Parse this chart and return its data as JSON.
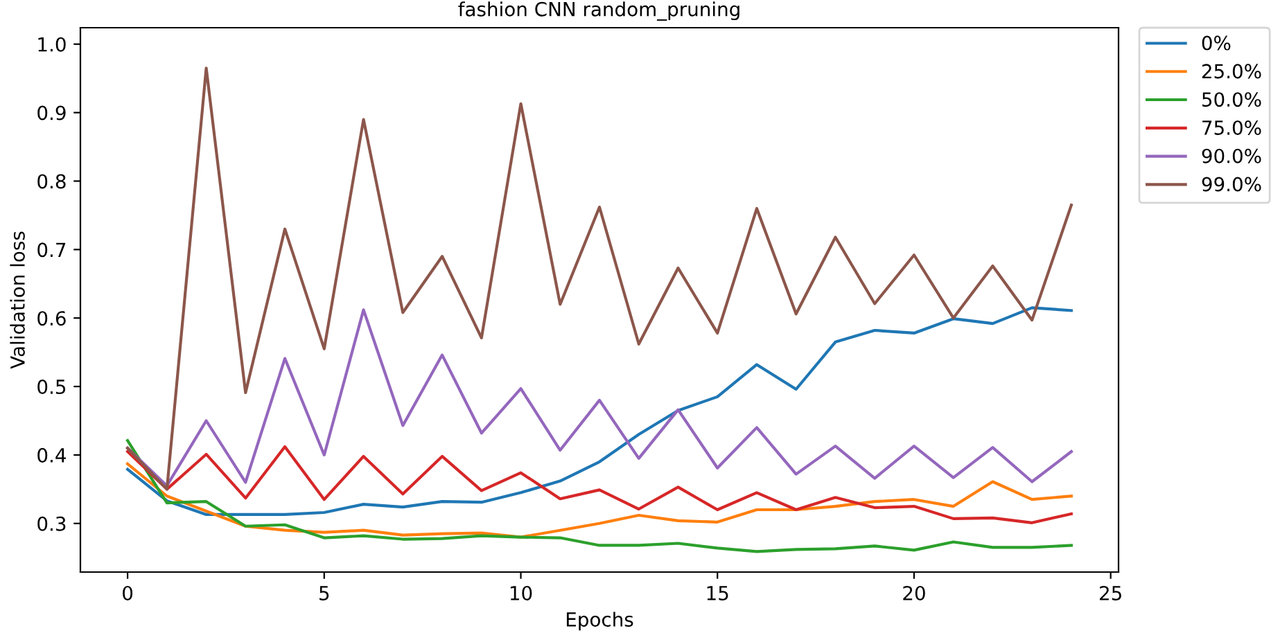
{
  "chart_data": {
    "type": "line",
    "title": "fashion CNN random_pruning",
    "xlabel": "Epochs",
    "ylabel": "Validation loss",
    "x": [
      0,
      1,
      2,
      3,
      4,
      5,
      6,
      7,
      8,
      9,
      10,
      11,
      12,
      13,
      14,
      15,
      16,
      17,
      18,
      19,
      20,
      21,
      22,
      23,
      24
    ],
    "xlim": [
      -1.2,
      25.2
    ],
    "xticks": [
      0,
      5,
      10,
      15,
      20,
      25
    ],
    "ylim": [
      0.229,
      1.024
    ],
    "yticks": [
      0.3,
      0.4,
      0.5,
      0.6,
      0.7,
      0.8,
      0.9,
      {
        "value": 1.0,
        "label": "1.0"
      }
    ],
    "legend": "top right",
    "grid": false,
    "series": [
      {
        "name": "0%",
        "color": "#1f77b4",
        "values": [
          0.379,
          0.333,
          0.313,
          0.313,
          0.313,
          0.316,
          0.328,
          0.324,
          0.332,
          0.331,
          0.345,
          0.362,
          0.39,
          0.43,
          0.465,
          0.485,
          0.532,
          0.496,
          0.565,
          0.582,
          0.578,
          0.599,
          0.592,
          0.615,
          0.611
        ]
      },
      {
        "name": "25.0%",
        "color": "#ff7f0e",
        "values": [
          0.387,
          0.34,
          0.318,
          0.296,
          0.29,
          0.287,
          0.29,
          0.283,
          0.285,
          0.286,
          0.28,
          0.29,
          0.3,
          0.312,
          0.304,
          0.302,
          0.32,
          0.32,
          0.325,
          0.332,
          0.335,
          0.325,
          0.361,
          0.335,
          0.34
        ]
      },
      {
        "name": "50.0%",
        "color": "#2ca02c",
        "values": [
          0.421,
          0.33,
          0.332,
          0.296,
          0.298,
          0.279,
          0.282,
          0.277,
          0.278,
          0.282,
          0.28,
          0.279,
          0.268,
          0.268,
          0.271,
          0.264,
          0.259,
          0.262,
          0.263,
          0.267,
          0.261,
          0.273,
          0.265,
          0.265,
          0.268
        ]
      },
      {
        "name": "75.0%",
        "color": "#d62728",
        "values": [
          0.405,
          0.35,
          0.401,
          0.337,
          0.412,
          0.335,
          0.398,
          0.343,
          0.398,
          0.348,
          0.374,
          0.336,
          0.349,
          0.321,
          0.353,
          0.32,
          0.345,
          0.32,
          0.338,
          0.323,
          0.325,
          0.307,
          0.308,
          0.301,
          0.314
        ]
      },
      {
        "name": "90.0%",
        "color": "#9467bd",
        "values": [
          0.41,
          0.355,
          0.45,
          0.36,
          0.541,
          0.4,
          0.612,
          0.443,
          0.546,
          0.432,
          0.497,
          0.407,
          0.48,
          0.395,
          0.466,
          0.381,
          0.44,
          0.372,
          0.413,
          0.366,
          0.413,
          0.367,
          0.411,
          0.361,
          0.405
        ]
      },
      {
        "name": "99.0%",
        "color": "#8c564b",
        "values": [
          0.41,
          0.35,
          0.965,
          0.491,
          0.73,
          0.555,
          0.89,
          0.608,
          0.69,
          0.571,
          0.913,
          0.62,
          0.762,
          0.562,
          0.673,
          0.578,
          0.76,
          0.606,
          0.718,
          0.621,
          0.692,
          0.6,
          0.676,
          0.597,
          0.765
        ]
      }
    ]
  }
}
